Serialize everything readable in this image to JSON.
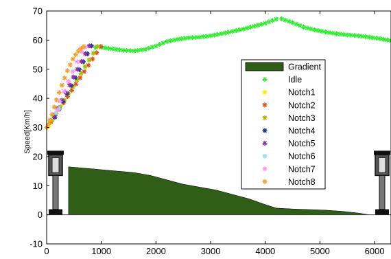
{
  "chart_data": {
    "type": "scatter",
    "title": "",
    "xlabel": "",
    "ylabel": "Speed[Km/h]",
    "xlim": [
      0,
      6300
    ],
    "ylim": [
      -10,
      70
    ],
    "xticks": [
      0,
      1000,
      2000,
      3000,
      4000,
      5000,
      6000
    ],
    "yticks": [
      -10,
      0,
      10,
      20,
      30,
      40,
      50,
      60,
      70
    ],
    "grid": false,
    "legend_position": "center-right",
    "gradient": {
      "name": "Gradient",
      "color": "#2f5f16",
      "x": [
        400,
        700,
        1000,
        1300,
        1600,
        1900,
        2200,
        2500,
        2800,
        3100,
        3400,
        3700,
        4000,
        4200,
        4500,
        4800,
        5100,
        5400,
        5700,
        5900
      ],
      "y": [
        16.5,
        16,
        15.5,
        15,
        14.5,
        13.5,
        12,
        10.5,
        9.5,
        8.5,
        7,
        5.5,
        3.5,
        2.3,
        2,
        1.8,
        1.6,
        1.2,
        0.6,
        0
      ]
    },
    "series": [
      {
        "name": "Idle",
        "color": "#33ee33",
        "marker": "*",
        "x": [
          900,
          1000,
          1200,
          1400,
          1600,
          1800,
          2000,
          2200,
          2400,
          2600,
          2800,
          3000,
          3200,
          3400,
          3600,
          3800,
          4000,
          4200,
          4300,
          4500,
          4700,
          4900,
          5100,
          5300,
          5500,
          5700,
          5900,
          6100,
          6300
        ],
        "y": [
          57.5,
          57.5,
          57,
          56.5,
          56.3,
          56.8,
          58,
          59.5,
          60.3,
          60.8,
          61,
          61.5,
          62.2,
          63,
          63.8,
          64.8,
          65.8,
          67.2,
          67.3,
          66,
          64.5,
          63.5,
          62.8,
          62.2,
          61.8,
          61.5,
          61,
          60.5,
          59.8
        ]
      },
      {
        "name": "Notch1",
        "color": "#ffee00",
        "marker": "*",
        "x": [
          40,
          60
        ],
        "y": [
          30.5,
          31.5
        ]
      },
      {
        "name": "Notch2",
        "color": "#dd5522",
        "marker": "*",
        "x": [
          80,
          990
        ],
        "y": [
          32,
          57.8
        ]
      },
      {
        "name": "Notch3",
        "color": "#aabb00",
        "marker": "*",
        "x": [
          100,
          930
        ],
        "y": [
          32.5,
          57.8
        ]
      },
      {
        "name": "Notch4",
        "color": "#223388",
        "marker": "*",
        "x": [
          150,
          820
        ],
        "y": [
          33.5,
          58
        ]
      },
      {
        "name": "Notch5",
        "color": "#8833aa",
        "marker": "*",
        "x": [
          130,
          780
        ],
        "y": [
          34,
          58
        ]
      },
      {
        "name": "Notch6",
        "color": "#99ddee",
        "marker": "*",
        "x": [
          170,
          230
        ],
        "y": [
          35,
          36.5
        ]
      },
      {
        "name": "Notch7",
        "color": "#ff99ee",
        "marker": "*",
        "x": [
          200,
          240,
          640,
          700
        ],
        "y": [
          36,
          39,
          56,
          57.5
        ]
      },
      {
        "name": "Notch8",
        "color": "#f0a530",
        "marker": "*",
        "x": [
          0,
          30,
          60,
          100,
          140,
          180,
          230,
          280,
          330,
          380,
          430,
          480,
          530,
          580,
          630,
          680
        ],
        "y": [
          30,
          31,
          32.5,
          34.5,
          37,
          39.5,
          42,
          44.5,
          47,
          49.5,
          51.5,
          53.5,
          55,
          56.3,
          57.2,
          57.8
        ]
      }
    ],
    "legend": [
      "Gradient",
      "Idle",
      "Notch1",
      "Notch2",
      "Notch3",
      "Notch4",
      "Notch5",
      "Notch6",
      "Notch7",
      "Notch8"
    ]
  }
}
